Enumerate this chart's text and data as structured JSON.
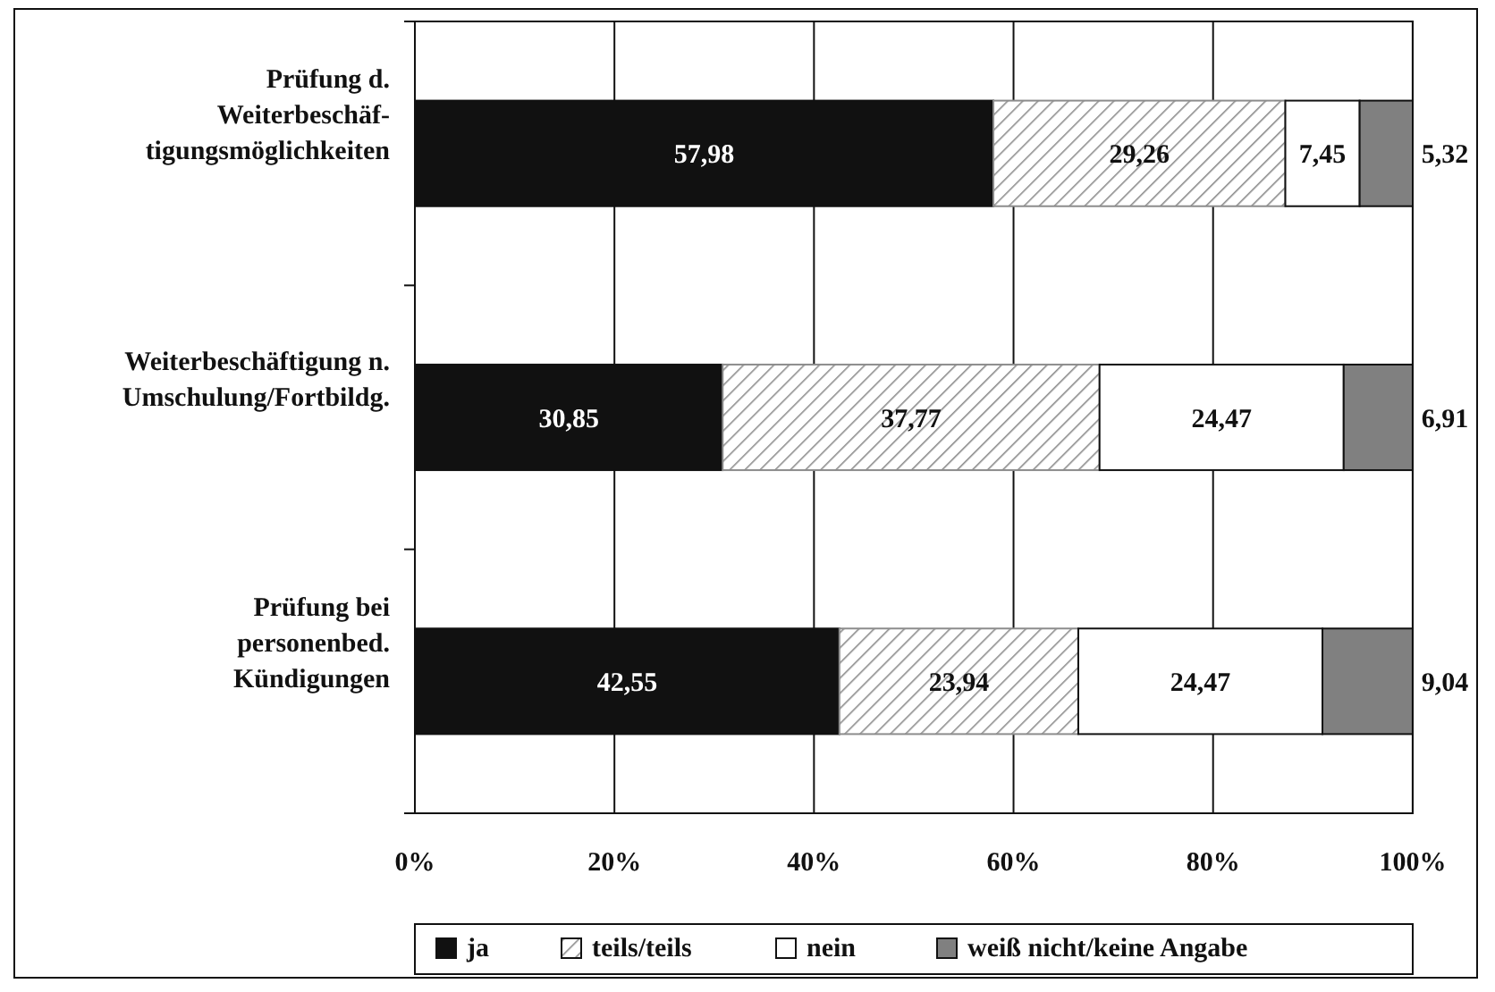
{
  "chart_data": {
    "type": "bar",
    "orientation": "horizontal",
    "stacked": true,
    "categories": [
      "Prüfung d.\nWeiterbeschäf-\ntigungsmöglichkeiten",
      "Weiterbeschäftigung n.\nUmschulung/Fortbildg.",
      "Prüfung bei\npersonenbed.\nKündigungen"
    ],
    "series": [
      {
        "name": "ja",
        "color": "#111111",
        "values": [
          57.98,
          30.85,
          42.55
        ],
        "value_labels": [
          "57,98",
          "30,85",
          "42,55"
        ]
      },
      {
        "name": "teils/teils",
        "color": "#8c8c8c",
        "values": [
          29.26,
          37.77,
          23.94
        ],
        "value_labels": [
          "29,26",
          "37,77",
          "23,94"
        ]
      },
      {
        "name": "nein",
        "color": "#ffffff",
        "values": [
          7.45,
          24.47,
          24.47
        ],
        "value_labels": [
          "7,45",
          "24,47",
          "24,47"
        ]
      },
      {
        "name": "weiß nicht/keine Angabe",
        "color": "#808080",
        "values": [
          5.32,
          6.91,
          9.04
        ],
        "value_labels": [
          "5,32",
          "6,91",
          "9,04"
        ]
      }
    ],
    "xlim": [
      0,
      100.01
    ],
    "xticks": [
      {
        "value": 0,
        "label": "0%"
      },
      {
        "value": 20,
        "label": "20%"
      },
      {
        "value": 40,
        "label": "40%"
      },
      {
        "value": 60,
        "label": "60%"
      },
      {
        "value": 80,
        "label": "80%"
      },
      {
        "value": 100,
        "label": "100%"
      }
    ],
    "grid": "x",
    "legend": "bottom"
  }
}
